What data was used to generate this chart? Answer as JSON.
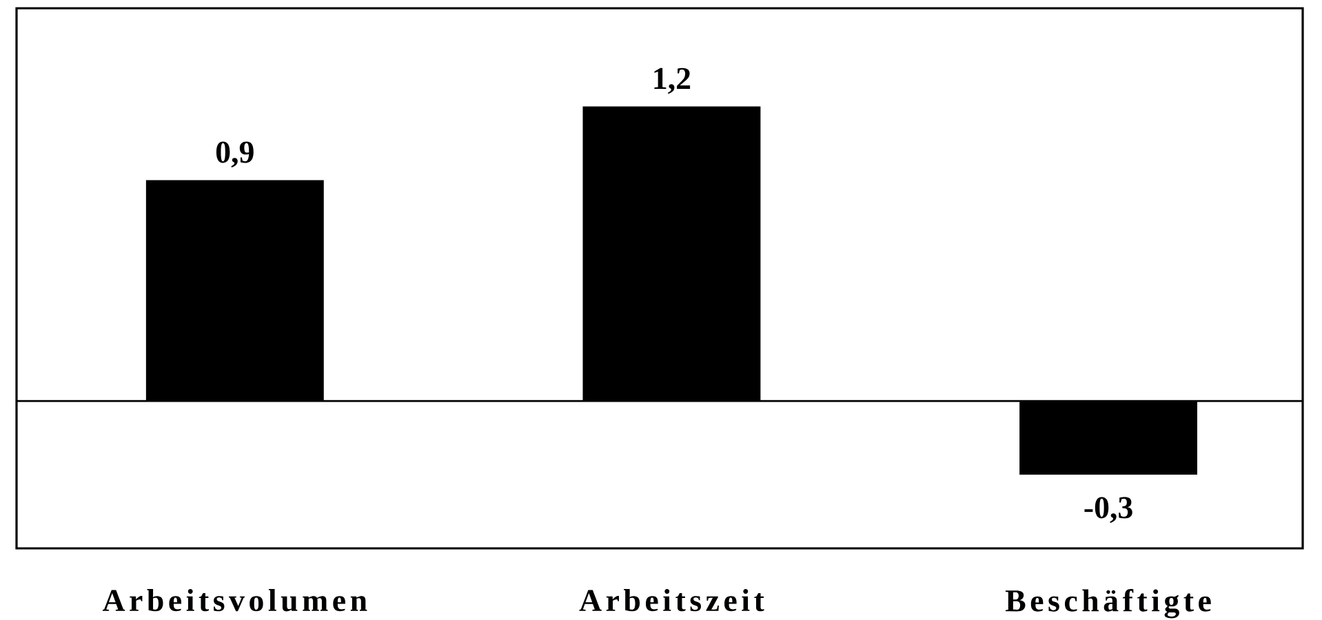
{
  "chart_data": {
    "type": "bar",
    "categories": [
      "Arbeitsvolumen",
      "Arbeitszeit",
      "Beschäftigte"
    ],
    "values": [
      0.9,
      1.2,
      -0.3
    ],
    "value_labels": [
      "0,9",
      "1,2",
      "-0,3"
    ],
    "color": "#000000",
    "ylim": [
      -0.6,
      1.6
    ],
    "tick_labels": "x"
  }
}
